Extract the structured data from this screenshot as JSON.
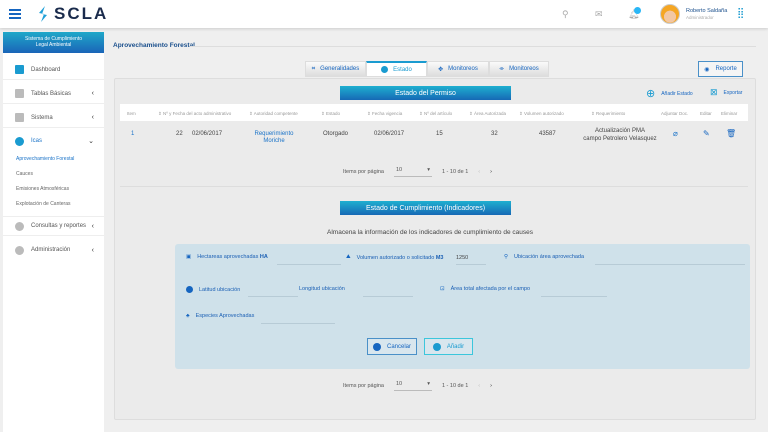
{
  "header": {
    "brand": "SCLA",
    "user_name": "Roberto Saldaña",
    "user_role": "Administrador",
    "notification_count": ""
  },
  "sidebar": {
    "system_title_line1": "Sistema de Cumplimiento",
    "system_title_line2": "Legal Ambiental",
    "items": [
      {
        "label": "Dashboard"
      },
      {
        "label": "Tablas Básicas"
      },
      {
        "label": "Sistema"
      },
      {
        "label": "Icas"
      },
      {
        "label": "Consultas y reportes"
      },
      {
        "label": "Administración"
      }
    ],
    "subitems": [
      {
        "label": "Aprovechamiento Forestal"
      },
      {
        "label": "Cauces"
      },
      {
        "label": "Emisiones Atmosféricas"
      },
      {
        "label": "Explotación de Canteras"
      }
    ]
  },
  "page": {
    "title": "Aprovechamiento Forestal"
  },
  "tabs": [
    {
      "label": "Generalidades"
    },
    {
      "label": "Estado"
    },
    {
      "label": "Monitoreos"
    },
    {
      "label": "Monitoreos"
    }
  ],
  "report_button": "Reporte",
  "permiso": {
    "title": "Estado del Permiso",
    "add_label": "Añadir Estado",
    "export_label": "Exportar",
    "columns": [
      "Item",
      "Nº y Fecha del acto administrativo",
      "Autoridad competente",
      "Estado",
      "Fecha vigencia",
      "Nº del artículo",
      "Área Autorizada",
      "Volumen autorizado",
      "Requerimiento",
      "Adjuntar Doc.",
      "Editar",
      "Eliminar"
    ],
    "rows": [
      {
        "item": "1",
        "numero": "22",
        "fecha": "02/06/2017",
        "autoridad": "Requerimiento Moriche",
        "estado": "Otorgado",
        "vigencia": "02/06/2017",
        "articulo": "15",
        "area": "32",
        "volumen": "43587",
        "req_line1": "Actualización PMA",
        "req_line2": "campo Petrolero Velasquez"
      }
    ],
    "paginator": {
      "label": "Items por página",
      "size": "10",
      "range": "1 - 10 de 1"
    }
  },
  "cumplimiento": {
    "title": "Estado de Cumplimiento (Indicadores)",
    "subtitle": "Almacena la información de los indicadores de cumplimiento de causes",
    "fields": {
      "hectareas": {
        "label": "Hectareas aprovechadas",
        "unit": "HA",
        "value": ""
      },
      "volumen": {
        "label": "Volumen autorizado o solicitado",
        "unit": "M3",
        "value": "1250"
      },
      "ubicacion": {
        "label": "Ubicación área aprovechada",
        "value": ""
      },
      "latitud": {
        "label": "Latitud ubicación",
        "value": ""
      },
      "longitud": {
        "label": "Longitud ubicación",
        "value": ""
      },
      "area_total": {
        "label": "Área total afectada por el campo",
        "value": ""
      },
      "especies": {
        "label": "Especies Aprovechadas",
        "value": ""
      }
    },
    "cancel": "Cancelar",
    "add": "Añadir",
    "paginator": {
      "label": "Items por página",
      "size": "10",
      "range": "1 - 10 de 1"
    }
  },
  "colors": {
    "primary": "#1565c0",
    "accent": "#1fb0d0",
    "form_bg": "#cfe1ea"
  }
}
